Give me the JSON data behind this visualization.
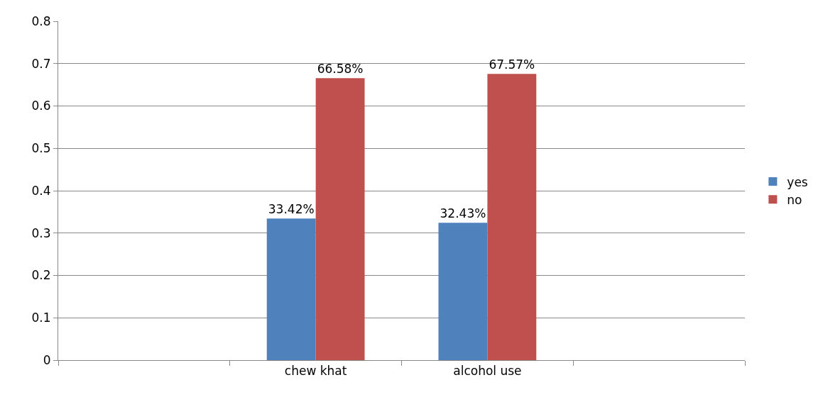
{
  "chart_data": {
    "type": "bar",
    "categories": [
      null,
      "chew khat",
      "alcohol use",
      null
    ],
    "series": [
      {
        "name": "yes",
        "color": "#4f81bd",
        "values": [
          null,
          0.3342,
          0.3243,
          null
        ],
        "value_labels": [
          null,
          "33.42%",
          "32.43%",
          null
        ]
      },
      {
        "name": "no",
        "color": "#c0504d",
        "values": [
          null,
          0.6658,
          0.6757,
          null
        ],
        "value_labels": [
          null,
          "66.58%",
          "67.57%",
          null
        ]
      }
    ],
    "ylim": [
      0,
      0.8
    ],
    "yticks": [
      0,
      0.1,
      0.2,
      0.3,
      0.4,
      0.5,
      0.6,
      0.7,
      0.8
    ],
    "grid": "y",
    "legend": "right"
  }
}
